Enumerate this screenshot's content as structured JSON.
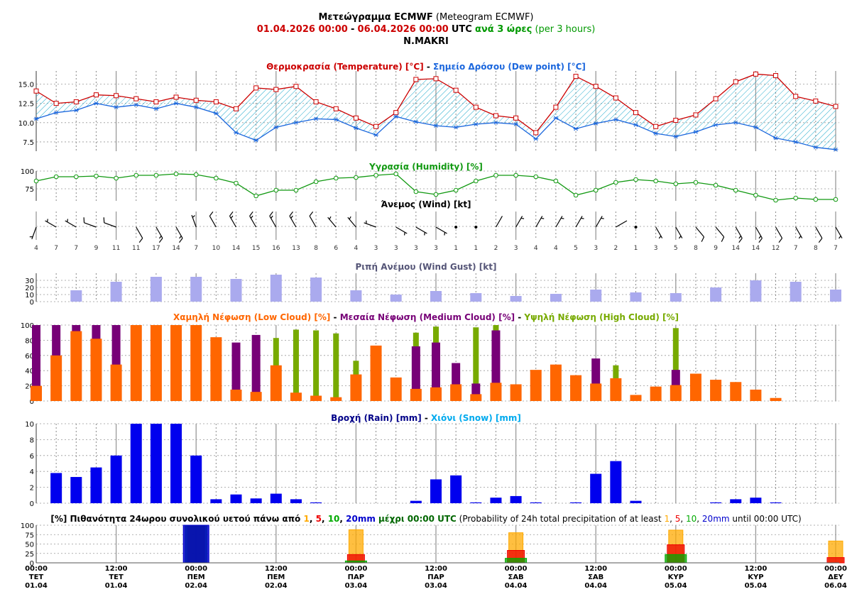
{
  "header": {
    "title_bold": "Μετεώγραμμα ECMWF",
    "title_rest": "(Meteogram ECMWF)",
    "period_from": "01.04.2026 00:00",
    "period_sep": "-",
    "period_to": "06.04.2026 00:00",
    "period_utc": "UTC",
    "step_gr": "ανά 3 ώρες",
    "step_en": "(per 3 hours)",
    "station": "N.MAKRI"
  },
  "colors": {
    "temperature": "#cc0000",
    "dewpoint": "#1a66dd",
    "humidity": "#119911",
    "gust": "#aaaaee",
    "low_cloud": "#ff6600",
    "medium_cloud": "#770077",
    "high_cloud": "#77aa00",
    "rain": "#0000ee",
    "snow": "#00aaee",
    "p1": "#ffaa00",
    "p5": "#ee0000",
    "p10": "#00aa00",
    "p20": "#0000cc"
  },
  "chart_data": [
    {
      "type": "line",
      "title_parts": [
        "Θερμοκρασία (Temperature) [°C]",
        " - ",
        "Σημείο Δρόσου (Dew point) [°C]"
      ],
      "x_count": 41,
      "ylim": [
        6.3,
        16.7
      ],
      "yticks": [
        "7.5",
        "10.0",
        "12.5",
        "15.0"
      ],
      "series": [
        {
          "name": "Θερμοκρασία (Temperature) [°C]",
          "values": [
            14.1,
            12.5,
            12.7,
            13.6,
            13.5,
            13.1,
            12.7,
            13.3,
            12.9,
            12.7,
            11.8,
            14.5,
            14.3,
            14.7,
            12.7,
            11.8,
            10.6,
            9.5,
            11.3,
            15.6,
            15.7,
            14.2,
            12.0,
            10.9,
            10.6,
            8.7,
            12.0,
            16.0,
            14.7,
            13.2,
            11.3,
            9.5,
            10.3,
            11.0,
            13.1,
            15.3,
            16.3,
            16.1,
            13.4,
            12.8,
            12.1
          ]
        },
        {
          "name": "Σημείο Δρόσου (Dew point) [°C]",
          "values": [
            10.5,
            11.3,
            11.6,
            12.5,
            12.0,
            12.3,
            11.8,
            12.5,
            12.0,
            11.2,
            8.7,
            7.7,
            9.4,
            10.0,
            10.5,
            10.4,
            9.3,
            8.4,
            10.8,
            10.1,
            9.6,
            9.4,
            9.8,
            10.0,
            9.8,
            7.9,
            10.6,
            9.2,
            9.9,
            10.4,
            9.7,
            8.6,
            8.2,
            8.8,
            9.7,
            10.0,
            9.4,
            8.0,
            7.5,
            6.8,
            6.5
          ]
        }
      ]
    },
    {
      "type": "line",
      "title": "Υγρασία (Humidity) [%]",
      "ylim": [
        58,
        100
      ],
      "yticks": [
        "75",
        "100"
      ],
      "values": [
        86,
        92,
        92,
        93,
        90,
        94,
        94,
        96,
        95,
        90,
        83,
        65,
        73,
        73,
        85,
        90,
        91,
        94,
        96,
        71,
        67,
        73,
        86,
        94,
        94,
        92,
        86,
        66,
        73,
        84,
        88,
        86,
        82,
        84,
        80,
        73,
        66,
        59,
        62,
        60,
        60
      ]
    },
    {
      "type": "wind_barbs",
      "title": "Άνεμος (Wind) [kt]",
      "speeds": [
        "4",
        "7",
        "7",
        "9",
        "11",
        "11",
        "17",
        "14",
        "7",
        "10",
        "14",
        "15",
        "16",
        "13",
        "8",
        "6",
        "4",
        "3",
        "3",
        "3",
        "3",
        "1",
        "1",
        "2",
        "3",
        "4",
        "4",
        "5",
        "3",
        "2",
        "1",
        "3",
        "5",
        "8",
        "9",
        "14",
        "14",
        "12",
        "7",
        "8",
        "7"
      ],
      "dirs_deg": [
        200,
        300,
        300,
        290,
        290,
        150,
        150,
        150,
        340,
        330,
        330,
        330,
        330,
        330,
        330,
        320,
        320,
        290,
        120,
        120,
        120,
        60,
        60,
        30,
        30,
        30,
        30,
        30,
        30,
        60,
        150,
        150,
        150,
        140,
        140,
        150,
        150,
        150,
        150,
        150,
        150
      ]
    },
    {
      "type": "bar",
      "title": "Ριπή Ανέμου (Wind Gust) [kt]",
      "ylim": [
        0,
        40
      ],
      "yticks": [
        "0",
        "10",
        "20",
        "30"
      ],
      "values": [
        null,
        null,
        16,
        null,
        28,
        null,
        35,
        null,
        35,
        null,
        32,
        null,
        38,
        null,
        34,
        null,
        16,
        null,
        10,
        null,
        15,
        null,
        12,
        null,
        8,
        null,
        11,
        null,
        17,
        null,
        13,
        null,
        12,
        null,
        20,
        null,
        30,
        null,
        28,
        null,
        17
      ]
    },
    {
      "type": "bar",
      "title_parts": [
        "Χαμηλή Νέφωση (Low Cloud) [%]",
        " - ",
        "Μεσαία Νέφωση (Medium Cloud) [%]",
        " - ",
        "Υψηλή Νέφωση (High Cloud) [%]"
      ],
      "ylim": [
        0,
        100
      ],
      "yticks": [
        "0",
        "20",
        "40",
        "60",
        "80",
        "100"
      ],
      "series": [
        {
          "name": "Χαμηλή Νέφωση (Low Cloud) [%]",
          "values": [
            20,
            60,
            92,
            82,
            48,
            100,
            100,
            100,
            100,
            84,
            15,
            12,
            47,
            11,
            7,
            5,
            35,
            73,
            31,
            16,
            18,
            22,
            9,
            24,
            22,
            41,
            48,
            34,
            23,
            30,
            8,
            19,
            21,
            36,
            28,
            25,
            15,
            4,
            0,
            0,
            null
          ]
        },
        {
          "name": "Μεσαία Νέφωση (Medium Cloud) [%]",
          "values": [
            100,
            100,
            100,
            100,
            100,
            0,
            0,
            0,
            0,
            0,
            77,
            87,
            0,
            0,
            0,
            0,
            0,
            0,
            0,
            72,
            77,
            50,
            23,
            93,
            0,
            0,
            0,
            0,
            56,
            0,
            0,
            0,
            41,
            0,
            0,
            0,
            0,
            0,
            0,
            0,
            null
          ]
        },
        {
          "name": "Υψηλή Νέφωση (High Cloud) [%]",
          "values": [
            0,
            0,
            0,
            0,
            0,
            0,
            0,
            0,
            0,
            0,
            0,
            0,
            83,
            94,
            93,
            89,
            53,
            0,
            0,
            90,
            98,
            0,
            97,
            100,
            0,
            0,
            0,
            0,
            0,
            47,
            0,
            0,
            96,
            0,
            0,
            0,
            0,
            0,
            0,
            0,
            null
          ]
        }
      ]
    },
    {
      "type": "bar",
      "title_parts": [
        "Βροχή (Rain) [mm]",
        " - ",
        "Χιόνι (Snow) [mm]"
      ],
      "ylim": [
        0,
        10
      ],
      "yticks": [
        "0",
        "2",
        "4",
        "6",
        "8",
        "10"
      ],
      "series": [
        {
          "name": "Βροχή (Rain) [mm]",
          "values": [
            null,
            3.8,
            3.3,
            4.5,
            6.0,
            10,
            10,
            10,
            6.0,
            0.5,
            1.1,
            0.6,
            1.2,
            0.5,
            0.1,
            0,
            0,
            0,
            0,
            0.3,
            3.0,
            3.5,
            0.1,
            0.7,
            0.9,
            0.1,
            0,
            0.1,
            3.7,
            5.3,
            0.3,
            0,
            0,
            0,
            0.1,
            0.5,
            0.7,
            0.1,
            0,
            0,
            null
          ]
        },
        {
          "name": "Χιόνι (Snow) [mm]",
          "values": []
        }
      ]
    },
    {
      "type": "bar",
      "title_parts": [
        "[%] Πιθανότητα 24ωρου συνολικού υετού πάνω από ",
        "1",
        ", ",
        "5",
        ", ",
        "10",
        ", ",
        "20mm",
        " μέχρι 00:00 UTC",
        " (Probability of 24h total precipitation of at least ",
        "1",
        ", ",
        "5",
        ", ",
        "10",
        ", ",
        "20mm",
        " until 00:00 UTC)"
      ],
      "ylim": [
        0,
        100
      ],
      "yticks": [
        "0",
        "25",
        "50",
        "75",
        "100"
      ],
      "categories": [
        "02.04",
        "03.04",
        "04.04",
        "05.04",
        "06.04"
      ],
      "series": [
        {
          "name": "1",
          "values": [
            100,
            88,
            80,
            87,
            58
          ]
        },
        {
          "name": "5",
          "values": [
            100,
            22,
            33,
            48,
            14
          ]
        },
        {
          "name": "10",
          "values": [
            100,
            5,
            12,
            22,
            0
          ]
        },
        {
          "name": "20mm",
          "values": [
            100,
            0,
            0,
            0,
            0
          ]
        }
      ]
    }
  ],
  "x_axis": {
    "labels": [
      [
        "00:00",
        "ΤΕΤ",
        "01.04"
      ],
      [
        "12:00",
        "ΤΕΤ",
        "01.04"
      ],
      [
        "00:00",
        "ΠΕΜ",
        "02.04"
      ],
      [
        "12:00",
        "ΠΕΜ",
        "02.04"
      ],
      [
        "00:00",
        "ΠΑΡ",
        "03.04"
      ],
      [
        "12:00",
        "ΠΑΡ",
        "03.04"
      ],
      [
        "00:00",
        "ΣΑΒ",
        "04.04"
      ],
      [
        "12:00",
        "ΣΑΒ",
        "04.04"
      ],
      [
        "00:00",
        "ΚΥΡ",
        "05.04"
      ],
      [
        "12:00",
        "ΚΥΡ",
        "05.04"
      ],
      [
        "00:00",
        "ΔΕΥ",
        "06.04"
      ]
    ]
  }
}
